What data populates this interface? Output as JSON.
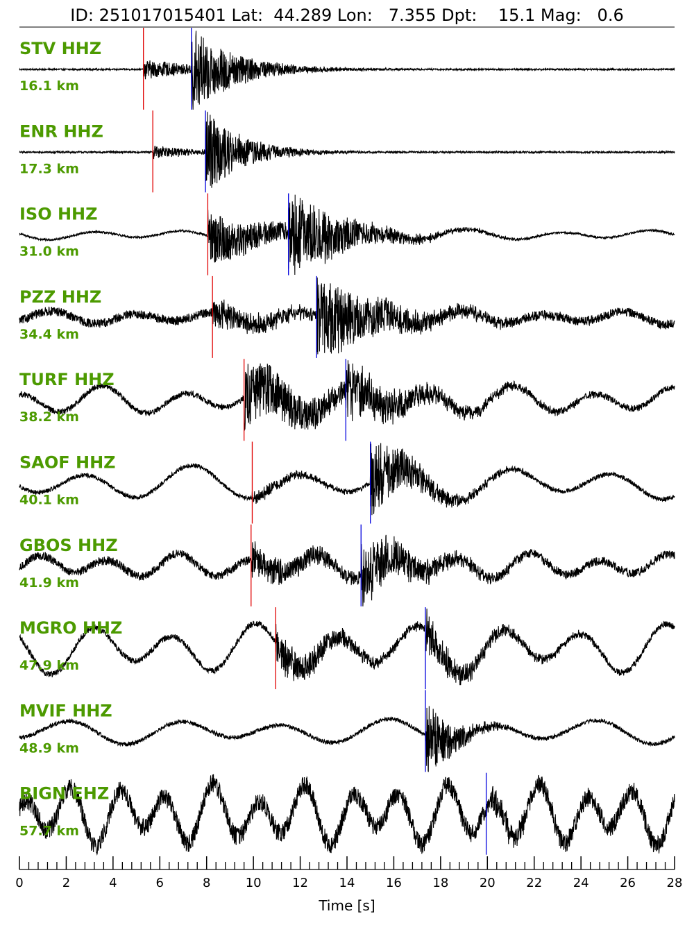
{
  "header": {
    "id_label": "ID:",
    "id": "251017015401",
    "lat_label": "Lat:",
    "lat": "44.289",
    "lon_label": "Lon:",
    "lon": "7.355",
    "depth_label": "Dpt:",
    "depth": "15.1",
    "mag_label": "Mag:",
    "mag": "0.6"
  },
  "colors": {
    "station_label": "#4c9a00",
    "p_pick": "#e00000",
    "s_pick": "#0000dd",
    "trace": "#000000"
  },
  "chart_data": {
    "type": "line",
    "xlabel": "Time [s]",
    "xlim": [
      0,
      28
    ],
    "xticks": [
      0,
      2,
      4,
      6,
      8,
      10,
      12,
      14,
      16,
      18,
      20,
      22,
      24,
      26,
      28
    ],
    "minor_tick_step": 0.4,
    "grid": false,
    "series": [
      {
        "name": "STV HHZ",
        "distance": "16.1 km",
        "p_pick": 5.3,
        "s_pick": 7.35,
        "noise": 0.02,
        "long_amp": 0.0,
        "long_period": 2.5,
        "p_amp": 0.25,
        "s_amp": 1.0,
        "decay": 2.5
      },
      {
        "name": "ENR HHZ",
        "distance": "17.3 km",
        "p_pick": 5.7,
        "s_pick": 7.95,
        "noise": 0.02,
        "long_amp": 0.0,
        "long_period": 2.5,
        "p_amp": 0.15,
        "s_amp": 0.95,
        "decay": 2.0
      },
      {
        "name": "ISO HHZ",
        "distance": "31.0 km",
        "p_pick": 8.05,
        "s_pick": 11.5,
        "noise": 0.02,
        "long_amp": 0.1,
        "long_period": 4.0,
        "p_amp": 0.5,
        "s_amp": 0.8,
        "decay": 3.0
      },
      {
        "name": "PZZ HHZ",
        "distance": "34.4 km",
        "p_pick": 8.25,
        "s_pick": 12.7,
        "noise": 0.1,
        "long_amp": 0.15,
        "long_period": 3.5,
        "p_amp": 0.3,
        "s_amp": 0.95,
        "decay": 3.5
      },
      {
        "name": "TURF HHZ",
        "distance": "38.2 km",
        "p_pick": 9.6,
        "s_pick": 13.95,
        "noise": 0.06,
        "long_amp": 0.3,
        "long_period": 3.5,
        "p_amp": 0.65,
        "s_amp": 0.5,
        "decay": 4.0
      },
      {
        "name": "SAOF HHZ",
        "distance": "40.1 km",
        "p_pick": 9.95,
        "s_pick": 15.0,
        "noise": 0.05,
        "long_amp": 0.4,
        "long_period": 4.5,
        "p_amp": 0.15,
        "s_amp": 0.85,
        "decay": 2.5
      },
      {
        "name": "GBOS HHZ",
        "distance": "41.9 km",
        "p_pick": 9.9,
        "s_pick": 14.6,
        "noise": 0.12,
        "long_amp": 0.35,
        "long_period": 3.0,
        "p_amp": 0.5,
        "s_amp": 0.9,
        "decay": 3.0
      },
      {
        "name": "MGRO HHZ",
        "distance": "47.9 km",
        "p_pick": 10.95,
        "s_pick": 17.35,
        "noise": 0.06,
        "long_amp": 0.5,
        "long_period": 3.5,
        "p_amp": 0.4,
        "s_amp": 0.4,
        "decay": 3.0
      },
      {
        "name": "MVIF HHZ",
        "distance": "48.9 km",
        "p_pick": null,
        "s_pick": 17.35,
        "noise": 0.05,
        "long_amp": 0.3,
        "long_period": 4.5,
        "p_amp": 0.0,
        "s_amp": 0.95,
        "decay": 1.5
      },
      {
        "name": "BIGN EHZ",
        "distance": "57.7 km",
        "p_pick": null,
        "s_pick": 19.95,
        "noise": 0.18,
        "long_amp": 0.6,
        "long_period": 2.0,
        "p_amp": 0.0,
        "s_amp": 0.2,
        "decay": 2.0
      }
    ]
  }
}
